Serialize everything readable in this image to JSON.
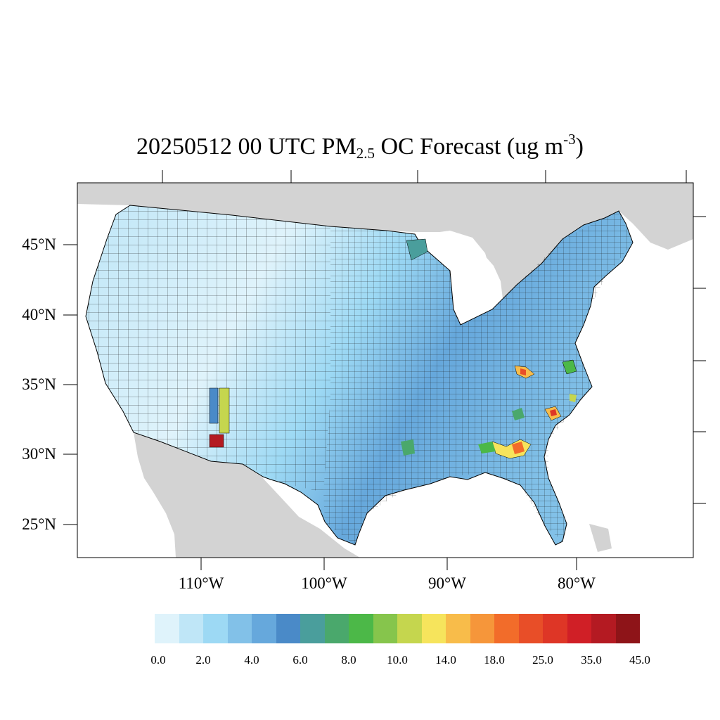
{
  "title": {
    "main": "20250512 00 UTC PM",
    "sub": "2.5",
    "mid": " OC Forecast (ug m",
    "sup": "-3",
    "end": ")"
  },
  "map": {
    "region": "Contiguous United States",
    "land_background": "#d3d3d3",
    "water_color": "#ffffff",
    "border_color": "#000000"
  },
  "axes": {
    "lat_labels": [
      "45°N",
      "40°N",
      "35°N",
      "30°N",
      "25°N"
    ],
    "lon_labels": [
      "110°W",
      "100°W",
      "90°W",
      "80°W"
    ]
  },
  "colorbar": {
    "colors": [
      "#dff3fb",
      "#bfe6f7",
      "#9dd9f4",
      "#82c1e8",
      "#66a8dc",
      "#4a8ac8",
      "#4a9e9c",
      "#4aa86c",
      "#4cb848",
      "#86c54c",
      "#c5d64e",
      "#f6e45c",
      "#f8bc4a",
      "#f6963a",
      "#f26c2a",
      "#e84e28",
      "#de3626",
      "#d01f26",
      "#b41a22",
      "#8e1418"
    ],
    "labels": [
      "0.0",
      "2.0",
      "4.0",
      "6.0",
      "8.0",
      "10.0",
      "14.0",
      "18.0",
      "25.0",
      "35.0",
      "45.0"
    ]
  }
}
